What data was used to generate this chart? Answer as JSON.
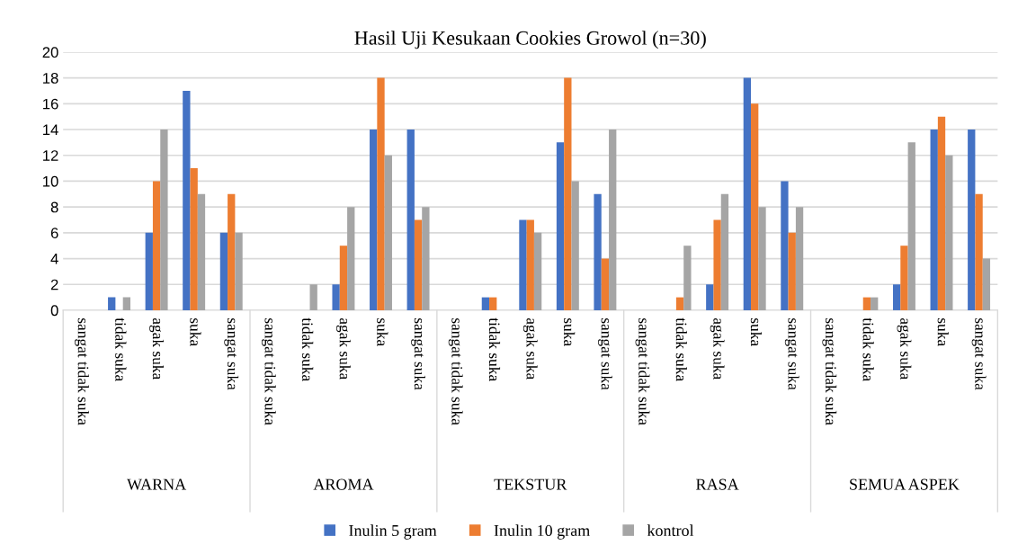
{
  "chart_data": {
    "type": "bar",
    "title": "Hasil Uji Kesukaan Cookies Growol (n=30)",
    "categories": [
      "sangat tidak suka",
      "tidak suka",
      "agak suka",
      "suka",
      "sangat suka",
      "sangat tidak suka",
      "tidak suka",
      "agak suka",
      "suka",
      "sangat suka",
      "sangat tidak suka",
      "tidak suka",
      "agak suka",
      "suka",
      "sangat suka",
      "sangat tidak suka",
      "tidak suka",
      "agak suka",
      "suka",
      "sangat suka",
      "sangat tidak suka",
      "tidak suka",
      "agak suka",
      "suka",
      "sangat suka"
    ],
    "series": [
      {
        "name": "Inulin 5 gram",
        "color": "#4472c4",
        "values": [
          0,
          1,
          6,
          17,
          6,
          0,
          0,
          2,
          14,
          14,
          0,
          1,
          7,
          13,
          9,
          0,
          0,
          2,
          18,
          10,
          0,
          0,
          2,
          14,
          14
        ]
      },
      {
        "name": "Inulin 10 gram",
        "color": "#ed7d31",
        "values": [
          0,
          0,
          10,
          11,
          9,
          0,
          0,
          5,
          18,
          7,
          0,
          1,
          7,
          18,
          4,
          0,
          1,
          7,
          16,
          6,
          0,
          1,
          5,
          15,
          9
        ]
      },
      {
        "name": "kontrol",
        "color": "#a5a5a5",
        "values": [
          0,
          1,
          14,
          9,
          6,
          0,
          2,
          8,
          12,
          8,
          0,
          0,
          6,
          10,
          14,
          0,
          5,
          9,
          8,
          8,
          0,
          1,
          13,
          12,
          4
        ]
      }
    ],
    "annotations": [
      "WARNA",
      "AROMA",
      "TEKSTUR",
      "RASA",
      "SEMUA ASPEK"
    ],
    "ylim": [
      0,
      20
    ],
    "yticks": [
      0,
      2,
      4,
      6,
      8,
      10,
      12,
      14,
      16,
      18,
      20
    ],
    "grid": "y",
    "legend": "bottom"
  }
}
